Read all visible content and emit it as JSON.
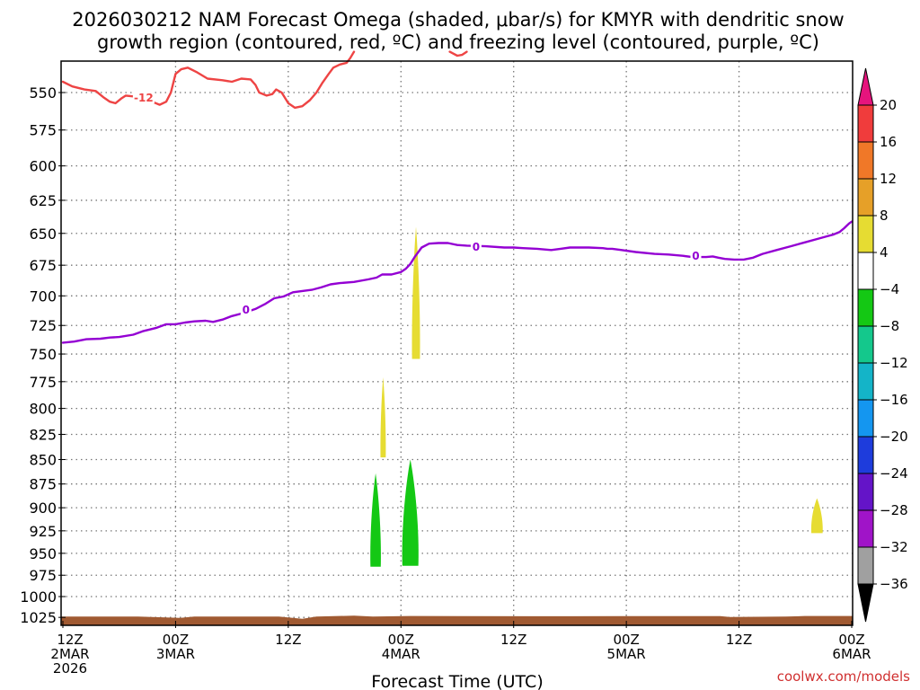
{
  "title_line1": "2026030212 NAM Forecast Omega (shaded, μbar/s) for KMYR with dendritic snow",
  "title_line2": "growth region (contoured, red, ºC) and freezing level (contoured, purple, ºC)",
  "credit": "coolwx.com/models",
  "chart_data": {
    "type": "time-height",
    "xlabel": "Forecast Time (UTC)",
    "xlim": [
      0,
      84
    ],
    "ylim": [
      1035,
      525
    ],
    "y_scale": "log-pressure",
    "grid": true,
    "x_ticks": [
      {
        "x": 0,
        "lines": [
          "12Z",
          "2MAR",
          "2026"
        ]
      },
      {
        "x": 12,
        "lines": [
          "00Z",
          "3MAR"
        ]
      },
      {
        "x": 24,
        "lines": [
          "12Z"
        ]
      },
      {
        "x": 36,
        "lines": [
          "00Z",
          "4MAR"
        ]
      },
      {
        "x": 48,
        "lines": [
          "12Z"
        ]
      },
      {
        "x": 60,
        "lines": [
          "00Z",
          "5MAR"
        ]
      },
      {
        "x": 72,
        "lines": [
          "12Z"
        ]
      },
      {
        "x": 84,
        "lines": [
          "00Z",
          "6MAR"
        ]
      }
    ],
    "y_ticks": [
      550,
      575,
      600,
      625,
      650,
      675,
      700,
      725,
      750,
      775,
      800,
      825,
      850,
      875,
      900,
      925,
      950,
      975,
      1000,
      1025
    ],
    "dendritic_contour": {
      "color": "#ee4444",
      "label": "-12",
      "label_at": [
        8.6,
        553
      ],
      "segments": [
        [
          [
            0,
            543
          ],
          [
            1,
            546
          ],
          [
            2.3,
            548
          ],
          [
            3.5,
            549
          ],
          [
            4.3,
            553
          ],
          [
            5,
            556
          ],
          [
            5.6,
            557
          ],
          [
            6.2,
            554
          ],
          [
            6.7,
            552
          ],
          [
            8.2,
            553
          ],
          [
            9.5,
            556
          ],
          [
            10.3,
            558
          ],
          [
            11,
            556
          ],
          [
            11.5,
            550
          ],
          [
            12,
            538
          ],
          [
            12.6,
            535
          ],
          [
            13.3,
            534
          ],
          [
            14.3,
            537
          ],
          [
            15.4,
            541
          ],
          [
            17,
            542
          ],
          [
            18,
            543
          ],
          [
            19,
            541
          ],
          [
            20,
            541.5
          ],
          [
            20.5,
            545
          ],
          [
            20.9,
            550
          ],
          [
            21.7,
            552
          ],
          [
            22.3,
            551
          ],
          [
            22.7,
            548
          ],
          [
            23.3,
            550
          ],
          [
            24,
            557
          ],
          [
            24.7,
            560
          ],
          [
            25.5,
            559
          ],
          [
            26.3,
            555
          ],
          [
            27,
            550
          ],
          [
            27.6,
            544
          ],
          [
            28.3,
            538
          ],
          [
            28.8,
            534
          ],
          [
            29.5,
            532
          ],
          [
            30.2,
            531
          ],
          [
            30.6,
            528
          ],
          [
            31,
            524
          ]
        ],
        [
          [
            41.2,
            524
          ],
          [
            42,
            526.5
          ],
          [
            42.5,
            526
          ],
          [
            43,
            524
          ]
        ]
      ]
    },
    "freezing_level_contour": {
      "color": "#9400d3",
      "label": "0",
      "labels_at": [
        [
          19.5,
          711
        ],
        [
          44,
          660
        ],
        [
          67.4,
          667
        ]
      ],
      "points": [
        [
          0,
          740
        ],
        [
          1.2,
          739
        ],
        [
          2.5,
          737
        ],
        [
          4,
          736.5
        ],
        [
          5,
          735.5
        ],
        [
          6,
          735
        ],
        [
          7.5,
          733
        ],
        [
          8.5,
          730
        ],
        [
          10,
          727
        ],
        [
          11,
          724
        ],
        [
          12,
          724
        ],
        [
          13,
          722.5
        ],
        [
          14,
          721.5
        ],
        [
          15.2,
          721
        ],
        [
          16,
          722
        ],
        [
          17,
          720
        ],
        [
          18,
          717
        ],
        [
          19.2,
          714.5
        ],
        [
          20.5,
          711
        ],
        [
          21.5,
          707
        ],
        [
          22.5,
          702
        ],
        [
          23.5,
          700.5
        ],
        [
          24.5,
          697
        ],
        [
          25.5,
          696
        ],
        [
          26.5,
          695
        ],
        [
          27.5,
          693
        ],
        [
          28.5,
          690.5
        ],
        [
          29.5,
          689.5
        ],
        [
          31,
          688.5
        ],
        [
          32.5,
          686.5
        ],
        [
          33.4,
          685
        ],
        [
          34,
          682.5
        ],
        [
          35,
          682.5
        ],
        [
          36,
          680.5
        ],
        [
          36.5,
          678
        ],
        [
          37,
          674
        ],
        [
          37.5,
          668
        ],
        [
          38.2,
          661
        ],
        [
          39,
          658
        ],
        [
          40,
          657.5
        ],
        [
          41,
          657.5
        ],
        [
          42,
          659
        ],
        [
          43,
          659.5
        ],
        [
          45,
          660
        ],
        [
          47,
          661
        ],
        [
          48,
          661
        ],
        [
          49,
          661.5
        ],
        [
          50.5,
          662
        ],
        [
          52,
          663
        ],
        [
          53,
          662
        ],
        [
          54,
          661
        ],
        [
          56,
          661
        ],
        [
          57.5,
          661.5
        ],
        [
          58,
          662
        ],
        [
          58.5,
          662
        ],
        [
          59.5,
          663
        ],
        [
          61,
          664.5
        ],
        [
          63,
          666
        ],
        [
          64.5,
          666.5
        ],
        [
          66,
          667.5
        ],
        [
          67,
          668.5
        ],
        [
          68.5,
          668.5
        ],
        [
          69.2,
          668
        ],
        [
          69.8,
          669
        ],
        [
          70.5,
          670
        ],
        [
          71.5,
          670.5
        ],
        [
          72.5,
          670.5
        ],
        [
          73.5,
          669
        ],
        [
          74.5,
          666
        ],
        [
          76,
          663
        ],
        [
          77.5,
          660
        ],
        [
          79,
          657
        ],
        [
          80.5,
          654
        ],
        [
          81.5,
          652
        ],
        [
          82,
          651
        ],
        [
          82.7,
          649
        ],
        [
          83.2,
          646
        ],
        [
          83.7,
          642.5
        ],
        [
          84,
          641
        ]
      ]
    },
    "omega_shading": [
      {
        "level": "4 to 8",
        "color": "#e6dc32",
        "x_center": 37.6,
        "half_width": 0.42,
        "p_top": 645,
        "p_bottom": 762
      },
      {
        "level": "4 to 8",
        "color": "#e6dc32",
        "x_center": 34.1,
        "half_width": 0.28,
        "p_top": 771,
        "p_bottom": 853
      },
      {
        "level": "4 to 8",
        "color": "#e6dc32",
        "x_center": 80.3,
        "half_width": 0.6,
        "p_top": 890,
        "p_bottom": 930
      },
      {
        "level": "-8 to -4",
        "color": "#14c814",
        "x_center": 33.3,
        "half_width": 0.55,
        "p_top": 864,
        "p_bottom": 972
      },
      {
        "level": "-8 to -4",
        "color": "#14c814",
        "x_center": 37.0,
        "half_width": 0.85,
        "p_top": 850,
        "p_bottom": 972
      }
    ],
    "terrain": {
      "color": "#a05a32",
      "p_top": 1024,
      "p_bottom": 1035
    },
    "colorbar": {
      "labels": [
        "20",
        "16",
        "12",
        "8",
        "4",
        "−4",
        "−8",
        "−12",
        "−16",
        "−20",
        "−24",
        "−28",
        "−32",
        "−36"
      ],
      "colors": [
        "#f03c3c",
        "#f07828",
        "#e6a028",
        "#e6dc32",
        "#ffffff",
        "#14c814",
        "#14c88c",
        "#14b4c8",
        "#1496f0",
        "#1e3cdc",
        "#6414c8",
        "#a014c8",
        "#a0a0a0"
      ],
      "top_arrow_color": "#e6147d",
      "bottom_arrow_color": "#000000"
    }
  }
}
